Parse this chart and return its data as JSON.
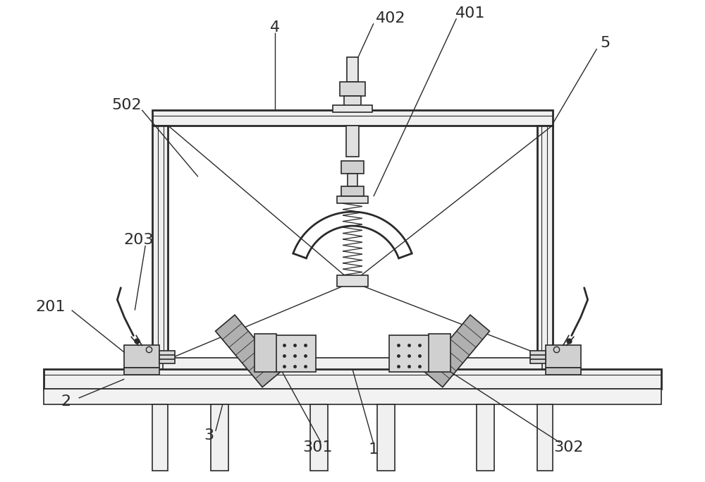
{
  "bg_color": "#ffffff",
  "line_color": "#2a2a2a",
  "line_width": 1.2,
  "thick_line": 2.0,
  "fontsize": 16,
  "figsize": [
    10.0,
    6.83
  ],
  "dpi": 100
}
